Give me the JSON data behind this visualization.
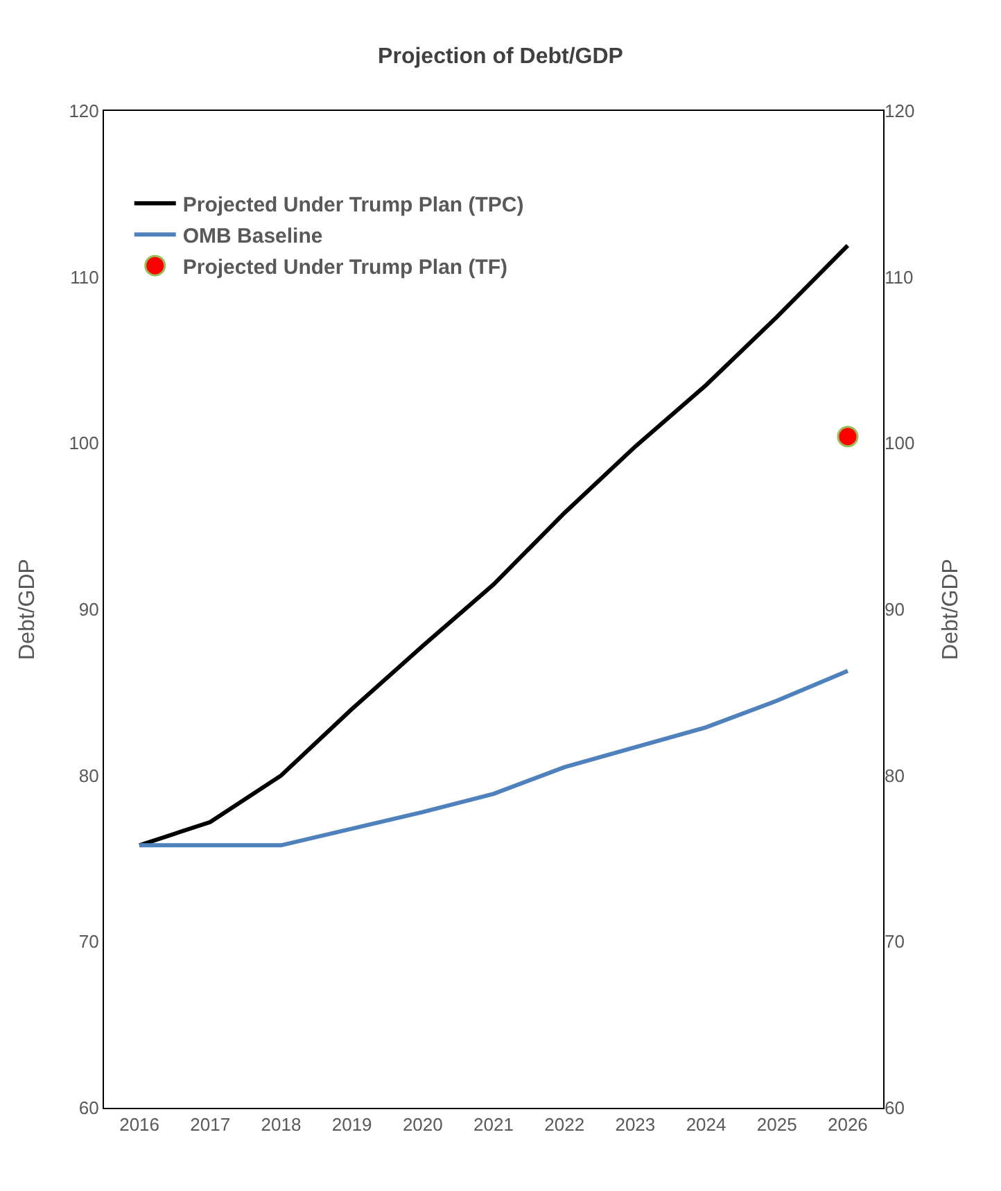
{
  "chart_data": {
    "type": "line",
    "title": "Projection of Debt/GDP",
    "ylabel": "Debt/GDP",
    "y2label": "Debt/GDP",
    "categories": [
      "2016",
      "2017",
      "2018",
      "2019",
      "2020",
      "2021",
      "2022",
      "2023",
      "2024",
      "2025",
      "2026"
    ],
    "series": [
      {
        "name": "Projected Under Trump Plan (TPC)",
        "color": "#000000",
        "values": [
          75.8,
          77.2,
          80.0,
          84.0,
          87.8,
          91.5,
          95.8,
          99.8,
          103.5,
          107.6,
          111.9
        ]
      },
      {
        "name": "OMB Baseline",
        "color": "#4f81bd",
        "values": [
          75.8,
          75.8,
          75.8,
          76.8,
          77.8,
          78.9,
          80.5,
          81.7,
          82.9,
          84.5,
          86.3
        ]
      },
      {
        "name": "Projected Under Trump Plan (TF)",
        "type": "scatter",
        "axis": "y2",
        "marker": "circle",
        "color": "#ff0000",
        "values": [
          null,
          null,
          null,
          null,
          null,
          null,
          null,
          null,
          null,
          null,
          100.4
        ]
      }
    ],
    "ylim": [
      60,
      120
    ],
    "yticks": [
      60,
      70,
      80,
      90,
      100,
      110,
      120
    ],
    "y2lim": [
      60,
      120
    ],
    "y2ticks": [
      60,
      70,
      80,
      90,
      100,
      110,
      120
    ],
    "grid": false,
    "legend": "top left",
    "marker": "none"
  }
}
